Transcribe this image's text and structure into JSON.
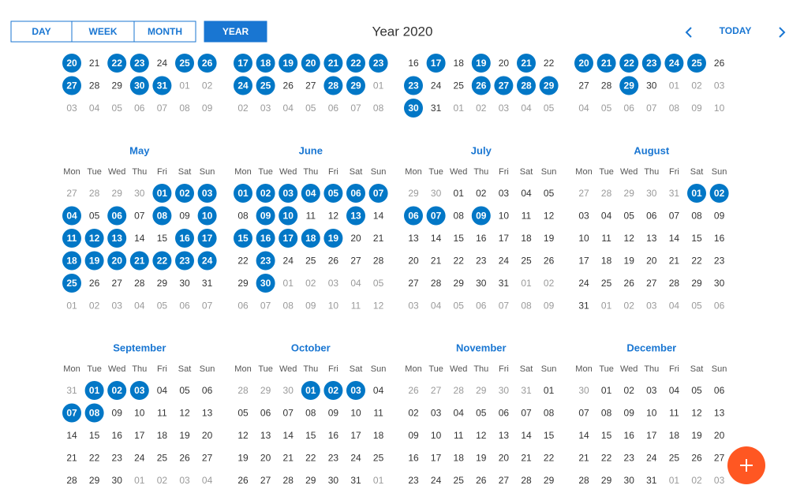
{
  "toolbar": {
    "views": [
      "DAY",
      "WEEK",
      "MONTH",
      "YEAR"
    ],
    "active_view": "YEAR",
    "title": "Year 2020",
    "today": "TODAY"
  },
  "calendar": {
    "weekdays": [
      "Mon",
      "Tue",
      "Wed",
      "Thu",
      "Fri",
      "Sat",
      "Sun"
    ],
    "months": [
      {
        "weeks": [
          [
            "20",
            "21",
            "22",
            "23",
            "24",
            "25",
            "26"
          ],
          [
            "27",
            "28",
            "29",
            "30",
            "31",
            "01",
            "02"
          ],
          [
            "03",
            "04",
            "05",
            "06",
            "07",
            "08",
            "09"
          ]
        ],
        "selected": [
          "20",
          "22",
          "23",
          "25",
          "26",
          "27",
          "30",
          "31"
        ]
      },
      {
        "weeks": [
          [
            "17",
            "18",
            "19",
            "20",
            "21",
            "22",
            "23"
          ],
          [
            "24",
            "25",
            "26",
            "27",
            "28",
            "29",
            "01"
          ],
          [
            "02",
            "03",
            "04",
            "05",
            "06",
            "07",
            "08"
          ]
        ],
        "selected": [
          "17",
          "18",
          "19",
          "20",
          "21",
          "22",
          "23",
          "24",
          "25",
          "28",
          "29"
        ]
      },
      {
        "weeks": [
          [
            "16",
            "17",
            "18",
            "19",
            "20",
            "21",
            "22"
          ],
          [
            "23",
            "24",
            "25",
            "26",
            "27",
            "28",
            "29"
          ],
          [
            "30",
            "31",
            "01",
            "02",
            "03",
            "04",
            "05"
          ]
        ],
        "selected": [
          "17",
          "19",
          "21",
          "23",
          "26",
          "27",
          "28",
          "29",
          "30"
        ]
      },
      {
        "weeks": [
          [
            "20",
            "21",
            "22",
            "23",
            "24",
            "25",
            "26"
          ],
          [
            "27",
            "28",
            "29",
            "30",
            "01",
            "02",
            "03"
          ],
          [
            "04",
            "05",
            "06",
            "07",
            "08",
            "09",
            "10"
          ]
        ],
        "selected": [
          "20",
          "21",
          "22",
          "23",
          "24",
          "25",
          "29"
        ]
      },
      {
        "name": "May",
        "weeks": [
          [
            "27",
            "28",
            "29",
            "30",
            "01",
            "02",
            "03"
          ],
          [
            "04",
            "05",
            "06",
            "07",
            "08",
            "09",
            "10"
          ],
          [
            "11",
            "12",
            "13",
            "14",
            "15",
            "16",
            "17"
          ],
          [
            "18",
            "19",
            "20",
            "21",
            "22",
            "23",
            "24"
          ],
          [
            "25",
            "26",
            "27",
            "28",
            "29",
            "30",
            "31"
          ],
          [
            "01",
            "02",
            "03",
            "04",
            "05",
            "06",
            "07"
          ]
        ],
        "selected": [
          "01",
          "02",
          "03",
          "04",
          "06",
          "08",
          "10",
          "11",
          "12",
          "13",
          "16",
          "17",
          "18",
          "19",
          "20",
          "21",
          "22",
          "23",
          "24",
          "25"
        ]
      },
      {
        "name": "June",
        "weeks": [
          [
            "01",
            "02",
            "03",
            "04",
            "05",
            "06",
            "07"
          ],
          [
            "08",
            "09",
            "10",
            "11",
            "12",
            "13",
            "14"
          ],
          [
            "15",
            "16",
            "17",
            "18",
            "19",
            "20",
            "21"
          ],
          [
            "22",
            "23",
            "24",
            "25",
            "26",
            "27",
            "28"
          ],
          [
            "29",
            "30",
            "01",
            "02",
            "03",
            "04",
            "05"
          ],
          [
            "06",
            "07",
            "08",
            "09",
            "10",
            "11",
            "12"
          ]
        ],
        "selected": [
          "01",
          "02",
          "03",
          "04",
          "05",
          "06",
          "07",
          "09",
          "10",
          "13",
          "15",
          "16",
          "17",
          "18",
          "19",
          "23",
          "30"
        ]
      },
      {
        "name": "July",
        "weeks": [
          [
            "29",
            "30",
            "01",
            "02",
            "03",
            "04",
            "05"
          ],
          [
            "06",
            "07",
            "08",
            "09",
            "10",
            "11",
            "12"
          ],
          [
            "13",
            "14",
            "15",
            "16",
            "17",
            "18",
            "19"
          ],
          [
            "20",
            "21",
            "22",
            "23",
            "24",
            "25",
            "26"
          ],
          [
            "27",
            "28",
            "29",
            "30",
            "31",
            "01",
            "02"
          ],
          [
            "03",
            "04",
            "05",
            "06",
            "07",
            "08",
            "09"
          ]
        ],
        "selected": [
          "06",
          "07",
          "09"
        ]
      },
      {
        "name": "August",
        "weeks": [
          [
            "27",
            "28",
            "29",
            "30",
            "31",
            "01",
            "02"
          ],
          [
            "03",
            "04",
            "05",
            "06",
            "07",
            "08",
            "09"
          ],
          [
            "10",
            "11",
            "12",
            "13",
            "14",
            "15",
            "16"
          ],
          [
            "17",
            "18",
            "19",
            "20",
            "21",
            "22",
            "23"
          ],
          [
            "24",
            "25",
            "26",
            "27",
            "28",
            "29",
            "30"
          ],
          [
            "31",
            "01",
            "02",
            "03",
            "04",
            "05",
            "06"
          ]
        ],
        "selected": [
          "01",
          "02"
        ]
      },
      {
        "name": "September",
        "weeks": [
          [
            "31",
            "01",
            "02",
            "03",
            "04",
            "05",
            "06"
          ],
          [
            "07",
            "08",
            "09",
            "10",
            "11",
            "12",
            "13"
          ],
          [
            "14",
            "15",
            "16",
            "17",
            "18",
            "19",
            "20"
          ],
          [
            "21",
            "22",
            "23",
            "24",
            "25",
            "26",
            "27"
          ],
          [
            "28",
            "29",
            "30",
            "01",
            "02",
            "03",
            "04"
          ]
        ],
        "selected": [
          "01",
          "02",
          "03",
          "07",
          "08"
        ]
      },
      {
        "name": "October",
        "weeks": [
          [
            "28",
            "29",
            "30",
            "01",
            "02",
            "03",
            "04"
          ],
          [
            "05",
            "06",
            "07",
            "08",
            "09",
            "10",
            "11"
          ],
          [
            "12",
            "13",
            "14",
            "15",
            "16",
            "17",
            "18"
          ],
          [
            "19",
            "20",
            "21",
            "22",
            "23",
            "24",
            "25"
          ],
          [
            "26",
            "27",
            "28",
            "29",
            "30",
            "31",
            "01"
          ]
        ],
        "selected": [
          "01",
          "02",
          "03"
        ]
      },
      {
        "name": "November",
        "weeks": [
          [
            "26",
            "27",
            "28",
            "29",
            "30",
            "31",
            "01"
          ],
          [
            "02",
            "03",
            "04",
            "05",
            "06",
            "07",
            "08"
          ],
          [
            "09",
            "10",
            "11",
            "12",
            "13",
            "14",
            "15"
          ],
          [
            "16",
            "17",
            "18",
            "19",
            "20",
            "21",
            "22"
          ],
          [
            "23",
            "24",
            "25",
            "26",
            "27",
            "28",
            "29"
          ]
        ],
        "selected": []
      },
      {
        "name": "December",
        "weeks": [
          [
            "30",
            "01",
            "02",
            "03",
            "04",
            "05",
            "06"
          ],
          [
            "07",
            "08",
            "09",
            "10",
            "11",
            "12",
            "13"
          ],
          [
            "14",
            "15",
            "16",
            "17",
            "18",
            "19",
            "20"
          ],
          [
            "21",
            "22",
            "23",
            "24",
            "25",
            "26",
            "27"
          ],
          [
            "28",
            "29",
            "30",
            "31",
            "01",
            "02",
            "03"
          ]
        ],
        "selected": []
      }
    ]
  }
}
